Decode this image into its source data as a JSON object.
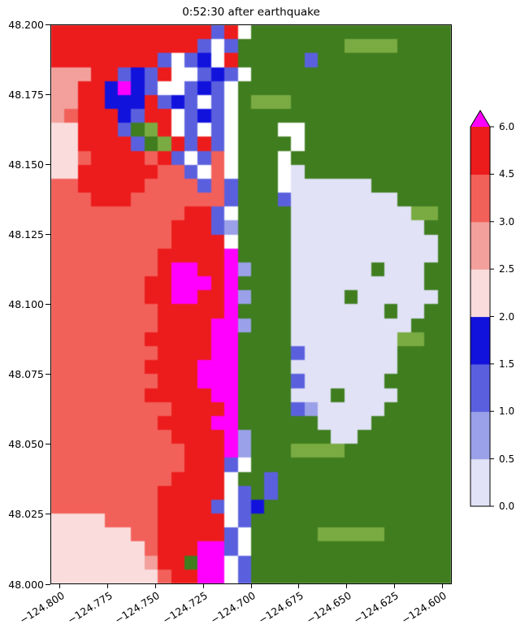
{
  "title": "0:52:30 after earthquake",
  "axes": {
    "y_ticks": [
      "48.200",
      "48.175",
      "48.150",
      "48.125",
      "48.100",
      "48.075",
      "48.050",
      "48.025",
      "48.000"
    ],
    "x_ticks": [
      "−124.800",
      "−124.775",
      "−124.750",
      "−124.725",
      "−124.700",
      "−124.675",
      "−124.650",
      "−124.625",
      "−124.600"
    ]
  },
  "colorbar": {
    "tick_labels_bottom_to_top": [
      "0.0",
      "0.5",
      "1.0",
      "1.5",
      "2.0",
      "2.5",
      "3.0",
      "4.5",
      "6.0"
    ],
    "band_colors_bottom_to_top": [
      "#e1e2f6",
      "#9aa1e8",
      "#5a60dd",
      "#1212dd",
      "#fadcdc",
      "#f3a09c",
      "#f2605a",
      "#ec1c1c"
    ],
    "over_color": "#ff00ff"
  },
  "chart_data": {
    "type": "heatmap",
    "title": "0:52:30 after earthquake",
    "xlabel": "",
    "ylabel": "",
    "xlim": [
      -124.805,
      -124.595
    ],
    "ylim": [
      48.0,
      48.2
    ],
    "x_ticks": [
      -124.8,
      -124.775,
      -124.75,
      -124.725,
      -124.7,
      -124.675,
      -124.65,
      -124.625,
      -124.6
    ],
    "y_ticks": [
      48.0,
      48.025,
      48.05,
      48.075,
      48.1,
      48.125,
      48.15,
      48.175,
      48.2
    ],
    "colorbar_levels": [
      0.0,
      0.5,
      1.0,
      1.5,
      2.0,
      2.5,
      3.0,
      4.5,
      6.0
    ],
    "colorbar_band_colors_bottom_to_top": [
      "#e1e2f6",
      "#9aa1e8",
      "#5a60dd",
      "#1212dd",
      "#fadcdc",
      "#f3a09c",
      "#f2605a",
      "#ec1c1c"
    ],
    "colorbar_over_color": "#ff00ff",
    "grid_on": false,
    "palette": {
      "R": {
        "color": "#ec1c1c",
        "band": "4.5-6.0"
      },
      "r": {
        "color": "#f2605a",
        "band": "3.0-4.5"
      },
      "p": {
        "color": "#f3a09c",
        "band": "2.5-3.0"
      },
      "P": {
        "color": "#fadcdc",
        "band": "2.0-2.5"
      },
      "M": {
        "color": "#ff00ff",
        "band": ">6.0"
      },
      "B": {
        "color": "#1212dd",
        "band": "1.5-2.0"
      },
      "b": {
        "color": "#5a60dd",
        "band": "1.0-1.5"
      },
      "v": {
        "color": "#9aa1e8",
        "band": "0.5-1.0"
      },
      "l": {
        "color": "#e1e2f6",
        "band": "0.0-0.5"
      },
      "W": {
        "color": "#ffffff",
        "band": "masked"
      },
      "G": {
        "color": "#3f7d1f",
        "band": "land"
      },
      "g": {
        "color": "#7aab42",
        "band": "land-light"
      }
    },
    "grid_shape": [
      40,
      30
    ],
    "grid_rows": [
      "RRRRRRRRRRRRbRWGGGGGGGGGGGGGGG",
      "RRRRRRRRRRRbWbGGGGGGGGggggGGGG",
      "RRRRRRRRbWbBWRGGGGGbGGGGGGGGGG",
      "pppRRbBbRWWbBbWGGGGGGGGGGGGGGG",
      "ppRRBMBbWWbBbWGGGGGGGGGGGGGGGG",
      "ppRRBBBRbBbWbWGgggGGGGGGGGGGGG",
      "prRRRBbRRWbBbWGGGGGGGGGGGGGGGG",
      "PPRRRbGgRWbWbWGGGWWGGGGGGGGGGG",
      "PPRRRRbGgRbRbWGGGGWGGGGGGGGGGG",
      "PPrRRRRrRbWbrWGGGWGGGGGGGGGGGG",
      "PPRRRRRRrrbWrWGGGWlGGGGGGGGGGG",
      "rrRRRRRrrrrbrbGGGWllllllGGGGGG",
      "rrrRRRrrrrrrrbGGGbllllllllGGGG",
      "rrrrrrrrrrRRbWGGGGlllllllllggG",
      "rrrrrrrrrRRRbvGGGGllllllllllGG",
      "rrrrrrrrrRRRRWGGGGlllllllllllG",
      "rrrrrrrrRRRRRMGGGGlllllllllllG",
      "rrrrrrrrRMMRRMvGGGllllllGlllGG",
      "rrrrrrrRRMMMRMGGGGllllllllllGG",
      "rrrrrrrRRMMRRMvGGGllllGllllllG",
      "rrrrrrrrRRRRRMGGGGlllllllGllGG",
      "rrrrrrrrRRRRMMvGGGlllllllllGGG",
      "rrrrrrrRRRRRMMGGGGllllllllggGG",
      "rrrrrrrrRRRRMMGGGGblllllllGGGG",
      "rrrrrrrRRRRMMMGGGGllllllllGGGG",
      "rrrrrrrrRRRMMMGGGGbllllllGGGGG",
      "rrrrrrrRRRRRMMGGGGlllGllllGGGG",
      "rrrrrrrrrRRRRMGGGGbvlllllGGGGG",
      "rrrrrrrrRRRRMMGGGGGGllllGGGGGG",
      "rrrrrrrrrRRRRMvGGGGGGllGGGGGGG",
      "rrrrrrrrrrRRRMvGGGggggGGGGGGGG",
      "rrrrrrrrrrRRRbWGGGGGGGGGGGGGGG",
      "rrrrrrrrrRRRRWGGbGGGGGGGGGGGGG",
      "rrrrrrrrRRRRRWbGbGGGGGGGGGGGGG",
      "rrrrrrrrRRRRbWbBGGGGGGGGGGGGGG",
      "PPPPrrrrRRRRRWbGGGGGGGGGGGGGGG",
      "PPPPPPrrRRRRRbWGGGGGgggggGGGGG",
      "PPPPPPPrRRRMMbWGGGGGGGGGGGGGGG",
      "PPPPPPPpRRGMMWbGGGGGGGGGGGGGGG",
      "PPPPPPPPrRRMMWbGGGGGGGGGGGGGGG"
    ]
  }
}
